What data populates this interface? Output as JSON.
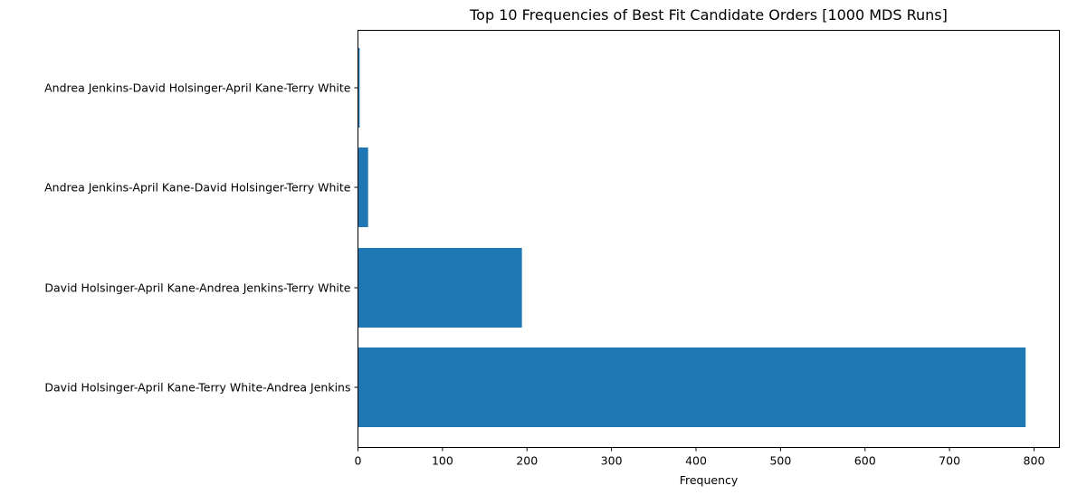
{
  "chart_data": {
    "type": "bar",
    "orientation": "horizontal",
    "title": "Top 10 Frequencies of Best Fit Candidate Orders [1000 MDS Runs]",
    "xlabel": "Frequency",
    "ylabel": "",
    "categories": [
      "David Holsinger-April Kane-Terry White-Andrea Jenkins",
      "David Holsinger-April Kane-Andrea Jenkins-Terry White",
      "Andrea Jenkins-April Kane-David Holsinger-Terry White",
      "Andrea Jenkins-David Holsinger-April Kane-Terry White"
    ],
    "values": [
      790,
      194,
      12,
      2
    ],
    "xlim": [
      0,
      830
    ],
    "xticks": [
      0,
      100,
      200,
      300,
      400,
      500,
      600,
      700,
      800
    ],
    "bar_color": "#1f77b4",
    "grid": false,
    "legend": "none"
  }
}
